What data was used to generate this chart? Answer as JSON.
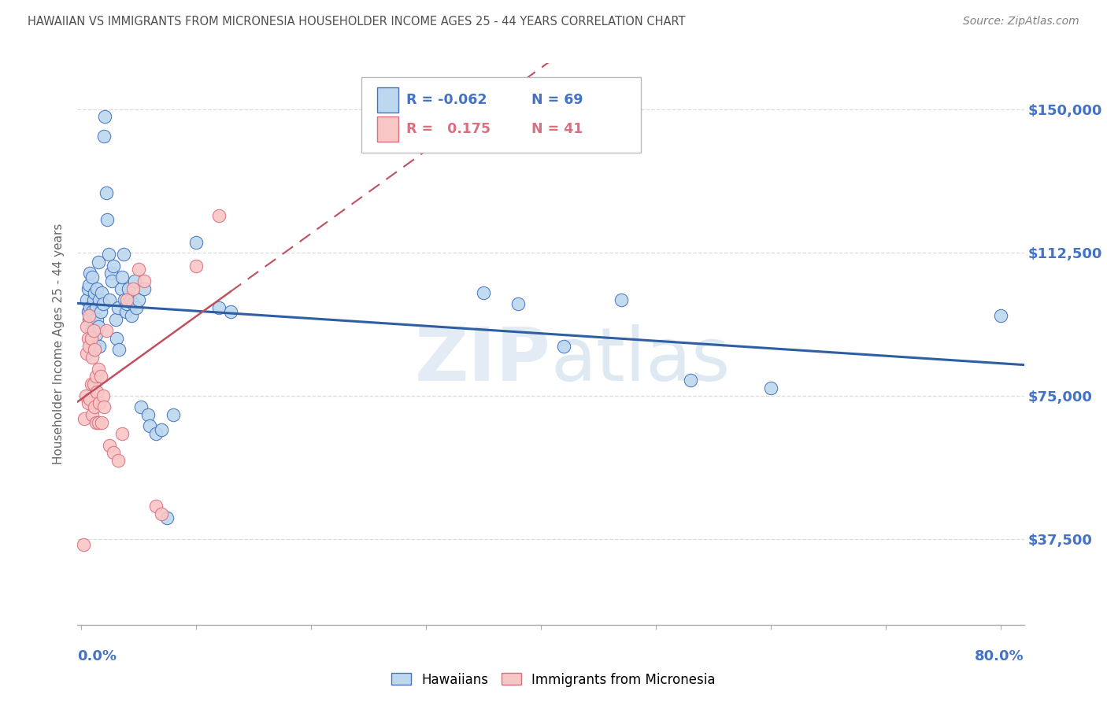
{
  "title": "HAWAIIAN VS IMMIGRANTS FROM MICRONESIA HOUSEHOLDER INCOME AGES 25 - 44 YEARS CORRELATION CHART",
  "source": "Source: ZipAtlas.com",
  "ylabel": "Householder Income Ages 25 - 44 years",
  "ytick_labels": [
    "$37,500",
    "$75,000",
    "$112,500",
    "$150,000"
  ],
  "ytick_values": [
    37500,
    75000,
    112500,
    150000
  ],
  "ymin": 15000,
  "ymax": 162000,
  "xmin": -0.003,
  "xmax": 0.82,
  "blue_scatter_color": "#BDD7EE",
  "blue_edge_color": "#4472C4",
  "pink_scatter_color": "#F9C6C6",
  "pink_edge_color": "#D97080",
  "line_blue_color": "#2E5FA3",
  "line_pink_color": "#C05060",
  "title_color": "#505050",
  "source_color": "#808080",
  "axis_label_color": "#4472C4",
  "grid_color": "#DDDDDD",
  "hawaiians_x": [
    0.005,
    0.006,
    0.006,
    0.007,
    0.007,
    0.008,
    0.008,
    0.009,
    0.01,
    0.01,
    0.011,
    0.011,
    0.012,
    0.012,
    0.013,
    0.013,
    0.014,
    0.014,
    0.015,
    0.015,
    0.016,
    0.016,
    0.017,
    0.018,
    0.019,
    0.02,
    0.021,
    0.022,
    0.023,
    0.024,
    0.025,
    0.026,
    0.027,
    0.028,
    0.03,
    0.031,
    0.032,
    0.033,
    0.035,
    0.036,
    0.037,
    0.038,
    0.039,
    0.04,
    0.041,
    0.043,
    0.044,
    0.045,
    0.047,
    0.048,
    0.05,
    0.052,
    0.055,
    0.058,
    0.06,
    0.065,
    0.07,
    0.075,
    0.08,
    0.1,
    0.12,
    0.13,
    0.35,
    0.38,
    0.42,
    0.47,
    0.53,
    0.6,
    0.8
  ],
  "hawaiians_y": [
    100000,
    97000,
    103000,
    95000,
    104000,
    98000,
    107000,
    92000,
    97000,
    106000,
    95000,
    100000,
    88000,
    102000,
    91000,
    98000,
    95000,
    103000,
    110000,
    93000,
    88000,
    100000,
    97000,
    102000,
    99000,
    143000,
    148000,
    128000,
    121000,
    112000,
    100000,
    107000,
    105000,
    109000,
    95000,
    90000,
    98000,
    87000,
    103000,
    106000,
    112000,
    100000,
    97000,
    99000,
    103000,
    100000,
    96000,
    99000,
    105000,
    98000,
    100000,
    72000,
    103000,
    70000,
    67000,
    65000,
    66000,
    43000,
    70000,
    115000,
    98000,
    97000,
    102000,
    99000,
    88000,
    100000,
    79000,
    77000,
    96000
  ],
  "micronesia_x": [
    0.002,
    0.003,
    0.004,
    0.005,
    0.005,
    0.006,
    0.006,
    0.007,
    0.007,
    0.008,
    0.009,
    0.009,
    0.01,
    0.01,
    0.011,
    0.011,
    0.012,
    0.012,
    0.013,
    0.013,
    0.014,
    0.015,
    0.015,
    0.016,
    0.017,
    0.018,
    0.019,
    0.02,
    0.022,
    0.025,
    0.028,
    0.032,
    0.036,
    0.04,
    0.045,
    0.05,
    0.055,
    0.065,
    0.07,
    0.1,
    0.12
  ],
  "micronesia_y": [
    36000,
    69000,
    75000,
    93000,
    86000,
    90000,
    73000,
    88000,
    96000,
    74000,
    90000,
    78000,
    85000,
    70000,
    92000,
    78000,
    72000,
    87000,
    68000,
    80000,
    76000,
    68000,
    82000,
    73000,
    80000,
    68000,
    75000,
    72000,
    92000,
    62000,
    60000,
    58000,
    65000,
    100000,
    103000,
    108000,
    105000,
    46000,
    44000,
    109000,
    122000
  ]
}
